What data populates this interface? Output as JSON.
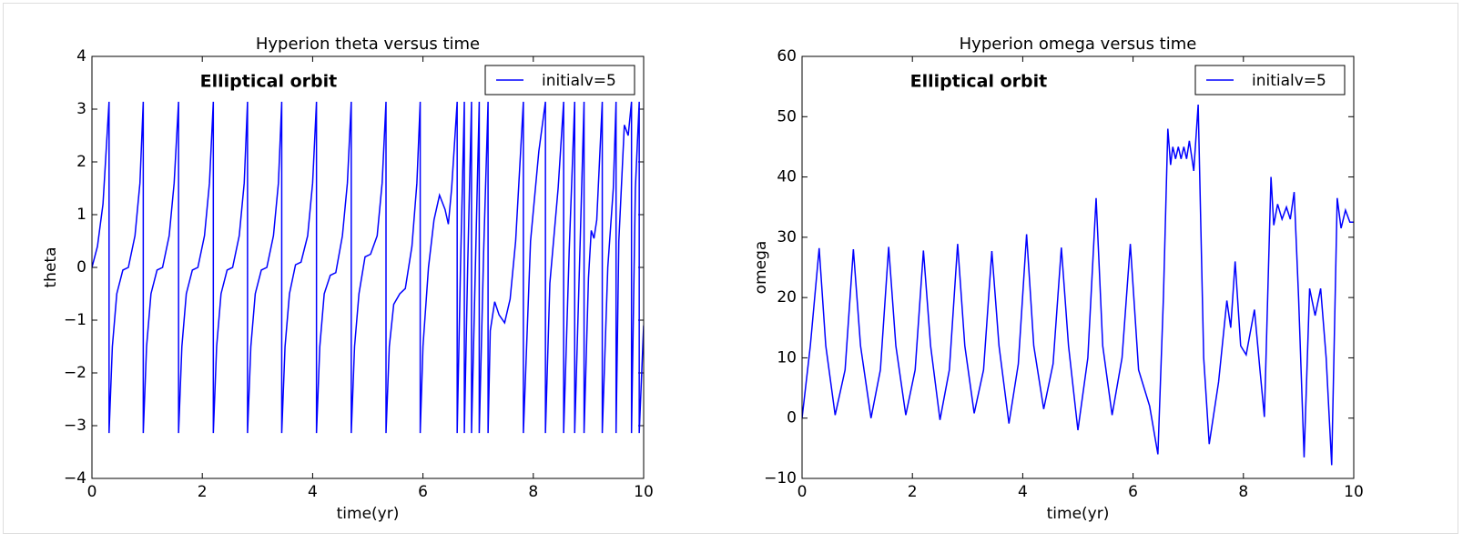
{
  "chart_data": [
    {
      "type": "line",
      "title": "Hyperion theta versus time",
      "xlabel": "time(yr)",
      "ylabel": "theta",
      "annotation": "Elliptical orbit",
      "legend": "upper right",
      "xlim": [
        0,
        10
      ],
      "ylim": [
        -4,
        4
      ],
      "xticks": [
        0,
        2,
        4,
        6,
        8,
        10
      ],
      "yticks": [
        {
          "value": -4,
          "label": "−4"
        },
        {
          "value": -3,
          "label": "−3"
        },
        {
          "value": -2,
          "label": "−2"
        },
        {
          "value": -1,
          "label": "−1"
        },
        0,
        1,
        2,
        3,
        4
      ],
      "x": [
        0,
        0.1,
        0.2,
        0.31,
        0.31,
        0.37,
        0.45,
        0.56,
        0.66,
        0.78,
        0.87,
        0.93,
        0.93,
        0.99,
        1.07,
        1.18,
        1.28,
        1.4,
        1.49,
        1.57,
        1.57,
        1.63,
        1.71,
        1.82,
        1.92,
        2.04,
        2.13,
        2.2,
        2.2,
        2.26,
        2.34,
        2.45,
        2.55,
        2.67,
        2.76,
        2.82,
        2.82,
        2.88,
        2.96,
        3.07,
        3.17,
        3.29,
        3.38,
        3.44,
        3.44,
        3.5,
        3.58,
        3.69,
        3.79,
        3.91,
        4.0,
        4.07,
        4.07,
        4.13,
        4.21,
        4.32,
        4.42,
        4.54,
        4.63,
        4.7,
        4.7,
        4.76,
        4.84,
        4.95,
        5.05,
        5.17,
        5.26,
        5.33,
        5.33,
        5.39,
        5.47,
        5.58,
        5.68,
        5.8,
        5.89,
        5.95,
        5.95,
        6.0,
        6.1,
        6.2,
        6.3,
        6.4,
        6.46,
        6.52,
        6.62,
        6.62,
        6.68,
        6.75,
        6.75,
        6.81,
        6.88,
        6.88,
        6.95,
        7.02,
        7.02,
        7.1,
        7.18,
        7.18,
        7.22,
        7.3,
        7.38,
        7.48,
        7.58,
        7.68,
        7.82,
        7.82,
        7.95,
        8.1,
        8.22,
        8.22,
        8.3,
        8.45,
        8.55,
        8.55,
        8.65,
        8.75,
        8.75,
        8.85,
        8.92,
        8.92,
        9.0,
        9.05,
        9.1,
        9.15,
        9.25,
        9.25,
        9.35,
        9.45,
        9.5,
        9.5,
        9.55,
        9.65,
        9.72,
        9.78,
        9.78,
        9.85,
        9.92,
        9.92,
        10.0
      ],
      "series": [
        {
          "name": "initialv=5",
          "color": "#0000ff",
          "values": [
            0,
            0.4,
            1.2,
            3.14,
            -3.14,
            -1.5,
            -0.5,
            -0.05,
            0,
            0.6,
            1.6,
            3.14,
            -3.14,
            -1.5,
            -0.5,
            -0.05,
            0,
            0.6,
            1.6,
            3.14,
            -3.14,
            -1.5,
            -0.5,
            -0.05,
            0,
            0.6,
            1.6,
            3.14,
            -3.14,
            -1.5,
            -0.5,
            -0.05,
            0,
            0.6,
            1.6,
            3.14,
            -3.14,
            -1.5,
            -0.5,
            -0.05,
            0,
            0.6,
            1.6,
            3.14,
            -3.14,
            -1.5,
            -0.5,
            0.05,
            0.1,
            0.6,
            1.6,
            3.14,
            -3.14,
            -1.5,
            -0.5,
            -0.15,
            -0.1,
            0.6,
            1.6,
            3.14,
            -3.14,
            -1.5,
            -0.5,
            0.2,
            0.25,
            0.6,
            1.6,
            3.14,
            -3.14,
            -1.5,
            -0.7,
            -0.5,
            -0.4,
            0.4,
            1.6,
            3.14,
            -3.14,
            -1.5,
            0,
            0.9,
            1.37,
            1.1,
            0.82,
            1.5,
            3.14,
            -3.14,
            0,
            3.14,
            -3.14,
            0,
            3.14,
            -3.14,
            0,
            3.14,
            -3.14,
            0.3,
            3.14,
            -3.14,
            -1.2,
            -0.65,
            -0.9,
            -1.05,
            -0.6,
            0.5,
            3.14,
            -3.14,
            0.5,
            2.2,
            3.14,
            -3.14,
            -0.3,
            1.5,
            3.14,
            -3.14,
            0.3,
            3.14,
            -3.14,
            0.5,
            3.14,
            -3.14,
            -0.2,
            0.7,
            0.55,
            0.9,
            3.14,
            -3.14,
            0,
            1.5,
            3.14,
            -3.14,
            0.5,
            2.7,
            2.5,
            3.14,
            -3.14,
            1.5,
            3.14,
            -3.14,
            -1.1
          ]
        }
      ]
    },
    {
      "type": "line",
      "title": "Hyperion omega versus time",
      "xlabel": "time(yr)",
      "ylabel": "omega",
      "annotation": "Elliptical orbit",
      "legend": "upper right",
      "xlim": [
        0,
        10
      ],
      "ylim": [
        -10,
        60
      ],
      "xticks": [
        0,
        2,
        4,
        6,
        8,
        10
      ],
      "yticks": [
        {
          "value": -10,
          "label": "−10"
        },
        0,
        10,
        20,
        30,
        40,
        50,
        60
      ],
      "x": [
        0,
        0.15,
        0.31,
        0.43,
        0.6,
        0.78,
        0.93,
        1.06,
        1.25,
        1.42,
        1.57,
        1.7,
        1.88,
        2.05,
        2.2,
        2.33,
        2.5,
        2.67,
        2.82,
        2.95,
        3.12,
        3.29,
        3.44,
        3.57,
        3.75,
        3.92,
        4.07,
        4.2,
        4.38,
        4.55,
        4.7,
        4.83,
        5.0,
        5.18,
        5.33,
        5.45,
        5.62,
        5.8,
        5.95,
        6.1,
        6.3,
        6.45,
        6.55,
        6.63,
        6.68,
        6.72,
        6.77,
        6.82,
        6.87,
        6.92,
        6.97,
        7.02,
        7.1,
        7.18,
        7.28,
        7.38,
        7.55,
        7.7,
        7.77,
        7.85,
        7.95,
        8.05,
        8.2,
        8.3,
        8.38,
        8.5,
        8.55,
        8.62,
        8.7,
        8.78,
        8.85,
        8.92,
        9.0,
        9.1,
        9.2,
        9.3,
        9.4,
        9.5,
        9.6,
        9.7,
        9.77,
        9.85,
        9.93,
        10.0
      ],
      "series": [
        {
          "name": "initialv=5",
          "color": "#0000ff",
          "values": [
            0,
            12,
            28.2,
            12,
            0.5,
            8,
            28,
            12,
            0,
            8,
            28.4,
            12,
            0.5,
            8,
            27.8,
            12,
            -0.3,
            8,
            28.9,
            12,
            0.8,
            8,
            27.7,
            12,
            -0.9,
            9,
            30.5,
            12,
            1.5,
            9,
            28.3,
            12,
            -2,
            10,
            36.5,
            12,
            0.5,
            10,
            28.9,
            8,
            2,
            -6,
            20,
            48,
            42,
            45,
            43,
            45,
            43,
            45,
            43,
            46,
            41,
            52,
            10,
            -4.3,
            6,
            19.5,
            15,
            26,
            12,
            10.5,
            18,
            8,
            0.2,
            40,
            32,
            35.5,
            33,
            35,
            33,
            37.5,
            20,
            -6.5,
            21.5,
            17,
            21.5,
            10,
            -7.8,
            36.5,
            31.5,
            34.5,
            32.5,
            32.5
          ]
        }
      ]
    }
  ]
}
